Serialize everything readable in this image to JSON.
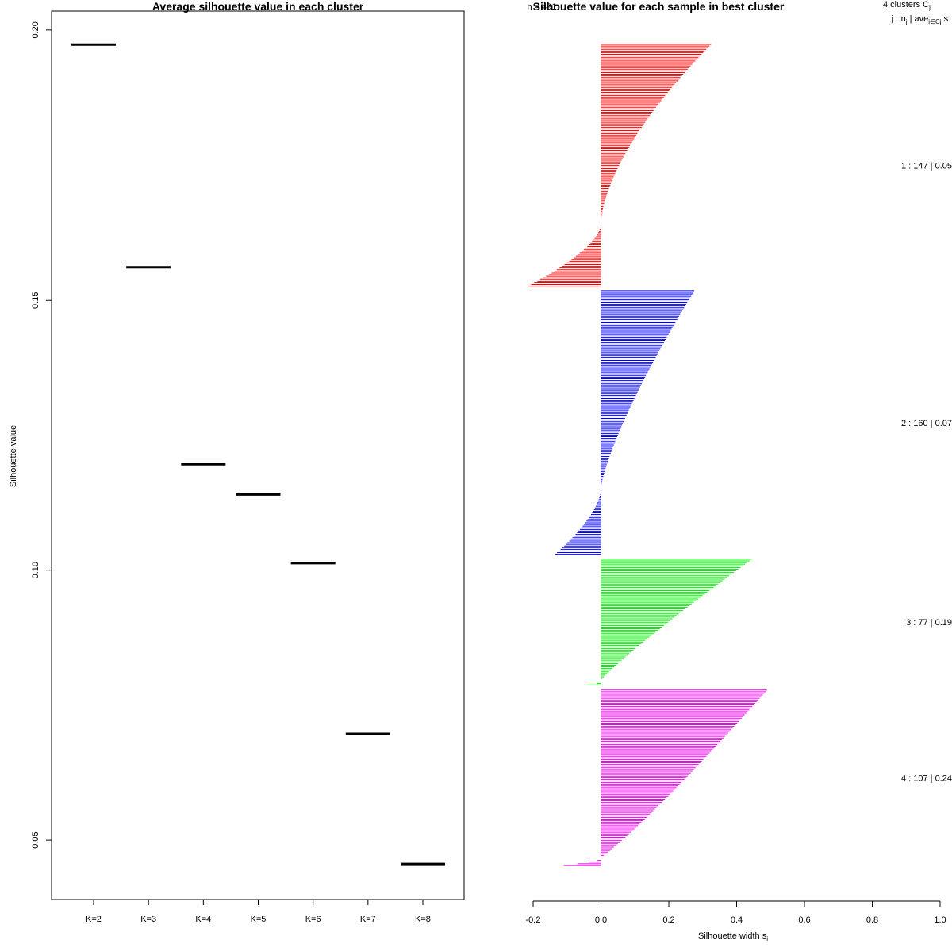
{
  "chart_data": [
    {
      "type": "line",
      "title": "Average silhouette value in each cluster",
      "xlabel": "",
      "ylabel": "Silhouette value",
      "categories": [
        "K=2",
        "K=3",
        "K=4",
        "K=5",
        "K=6",
        "K=7",
        "K=8"
      ],
      "values": [
        0.1973,
        0.1561,
        0.1196,
        0.114,
        0.1013,
        0.0697,
        0.0456
      ],
      "ylim": [
        0.039,
        0.2035
      ],
      "yticks": [
        "0.05",
        "0.10",
        "0.15",
        "0.20"
      ],
      "ytick_values": [
        0.05,
        0.1,
        0.15,
        0.2
      ],
      "marker": "horizontal-segment",
      "color": "#000000"
    },
    {
      "type": "bar",
      "orientation": "horizontal",
      "title": "Silhouette value for each sample in best cluster",
      "title_overlap": "n = 491",
      "xlabel": "Silhouette width s",
      "xlabel_sub": "i",
      "xlim": [
        -0.2,
        1.0
      ],
      "xticks": [
        "-0.2",
        "0.0",
        "0.2",
        "0.4",
        "0.6",
        "0.8",
        "1.0"
      ],
      "xtick_values": [
        -0.2,
        0.0,
        0.2,
        0.4,
        0.6,
        0.8,
        1.0
      ],
      "legend_header": {
        "line1_text": "4  clusters  C",
        "line1_sub": "j",
        "line2_text": "j :  n",
        "line2_sub1": "j",
        "line2_mid": " | ave",
        "line2_sub2": "i∈Cj",
        "line2_end": "  s"
      },
      "clusters": [
        {
          "id": 1,
          "n": 147,
          "avg": 0.05,
          "label": "1 :  147  |  0.05",
          "color": "#ff0000",
          "max": 0.325,
          "min": -0.215,
          "n_negative": 38,
          "shape": 1.6
        },
        {
          "id": 2,
          "n": 160,
          "avg": 0.07,
          "label": "2 :  160  |  0.07",
          "color": "#0000ff",
          "max": 0.275,
          "min": -0.135,
          "n_negative": 40,
          "shape": 1.3
        },
        {
          "id": 3,
          "n": 77,
          "avg": 0.19,
          "label": "3 :  77  |  0.19",
          "color": "#00ee00",
          "max": 0.445,
          "min": -0.04,
          "n_negative": 3,
          "shape": 1.1
        },
        {
          "id": 4,
          "n": 107,
          "avg": 0.24,
          "label": "4 :  107  |  0.24",
          "color": "#ee00ee",
          "max": 0.49,
          "min": -0.11,
          "n_negative": 5,
          "shape": 0.9
        }
      ]
    }
  ]
}
